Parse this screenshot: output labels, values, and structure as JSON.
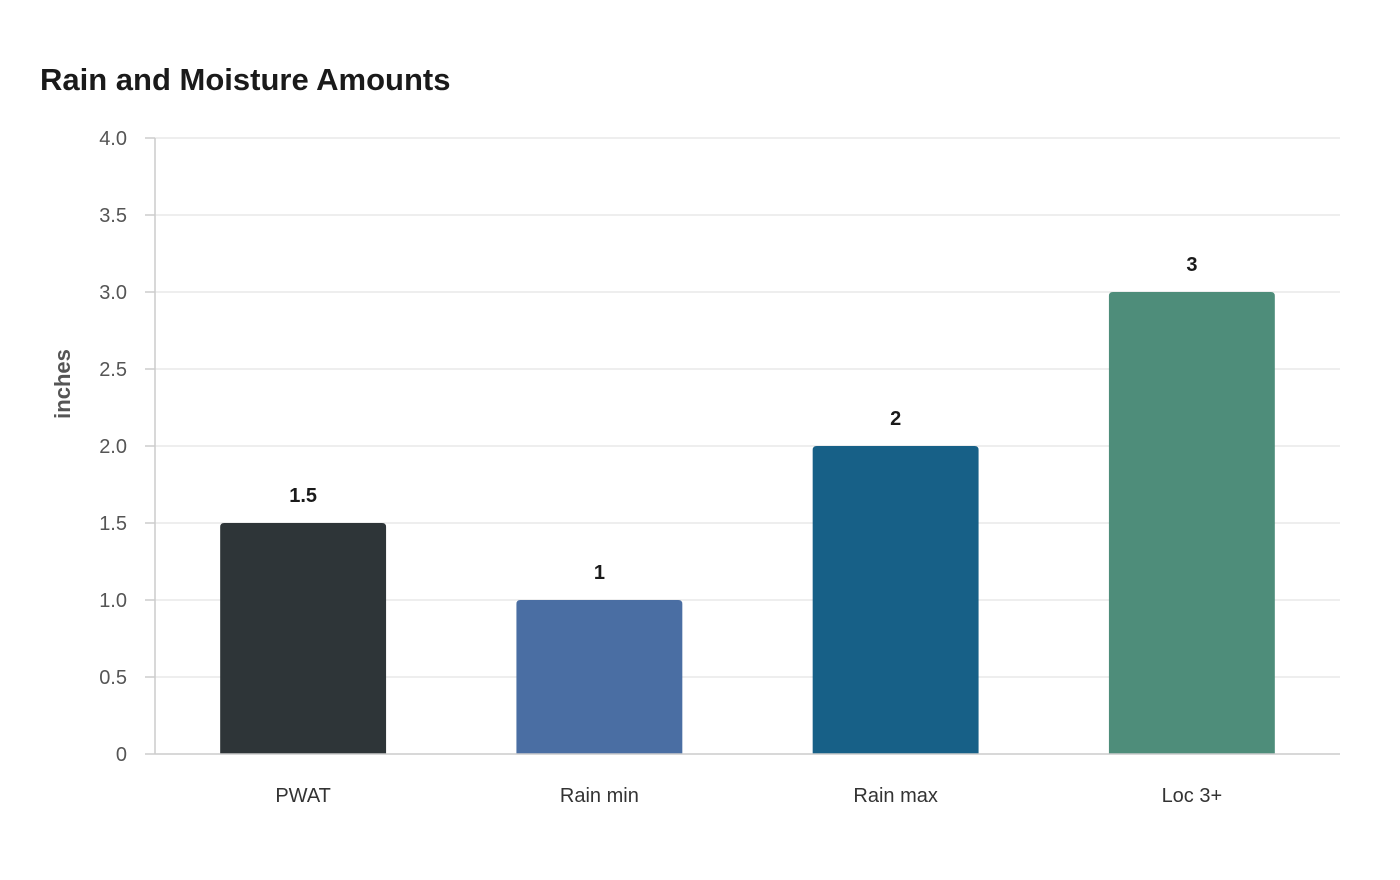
{
  "chart_data": {
    "type": "bar",
    "title": "Rain and Moisture Amounts",
    "xlabel": "",
    "ylabel": "inches",
    "categories": [
      "PWAT",
      "Rain min",
      "Rain max",
      "Loc 3+"
    ],
    "values": [
      1.5,
      1,
      2,
      3
    ],
    "value_labels": [
      "1.5",
      "1",
      "2",
      "3"
    ],
    "colors": [
      "#2e3538",
      "#4a6ea3",
      "#176087",
      "#4e8d7a"
    ],
    "ylim": [
      0,
      4
    ],
    "yticks": [
      0,
      0.5,
      1,
      1.5,
      2,
      2.5,
      3,
      3.5,
      4
    ],
    "ytick_labels": [
      "0",
      "0.5",
      "1.0",
      "1.5",
      "2.0",
      "2.5",
      "3.0",
      "3.5",
      "4.0"
    ],
    "grid": true,
    "legend": "none"
  }
}
